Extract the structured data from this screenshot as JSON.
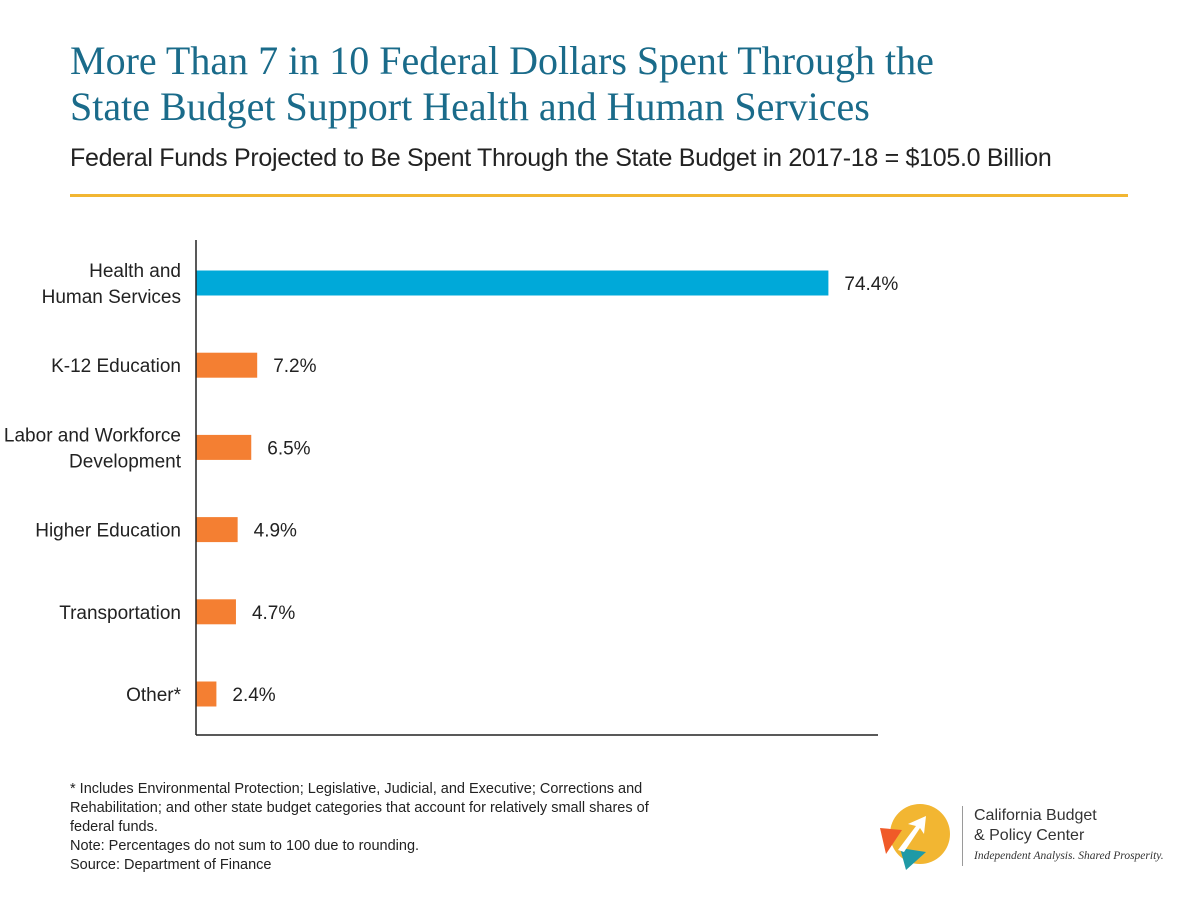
{
  "title_lines": [
    "More Than 7 in 10 Federal Dollars Spent Through the",
    "State Budget Support Health and Human Services"
  ],
  "subtitle": "Federal Funds Projected to Be Spent Through the State Budget in 2017-18 = $105.0 Billion",
  "colors": {
    "title": "#1a6b8a",
    "highlight_bar": "#00a9d9",
    "other_bar": "#f47f32",
    "rule": "#f2b632"
  },
  "chart_data": {
    "type": "bar",
    "orientation": "horizontal",
    "categories": [
      [
        "Health and",
        "Human Services"
      ],
      [
        "K-12 Education"
      ],
      [
        "Labor and Workforce",
        "Development"
      ],
      [
        "Higher Education"
      ],
      [
        "Transportation"
      ],
      [
        "Other*"
      ]
    ],
    "values": [
      74.4,
      7.2,
      6.5,
      4.9,
      4.7,
      2.4
    ],
    "data_labels": [
      "74.4%",
      "7.2%",
      "6.5%",
      "4.9%",
      "4.7%",
      "2.4%"
    ],
    "bar_colors": [
      "#00a9d9",
      "#f47f32",
      "#f47f32",
      "#f47f32",
      "#f47f32",
      "#f47f32"
    ],
    "xlim": [
      0,
      80
    ],
    "grid": false,
    "legend": "none"
  },
  "footnotes": [
    "* Includes Environmental Protection; Legislative, Judicial, and Executive; Corrections and",
    "Rehabilitation; and other state budget categories that account for relatively small shares of",
    "federal funds.",
    "Note: Percentages do not sum to 100 due to rounding.",
    "Source: Department of Finance"
  ],
  "logo": {
    "name_lines": [
      "California Budget",
      "& Policy Center"
    ],
    "tagline": "Independent Analysis. Shared Prosperity."
  }
}
